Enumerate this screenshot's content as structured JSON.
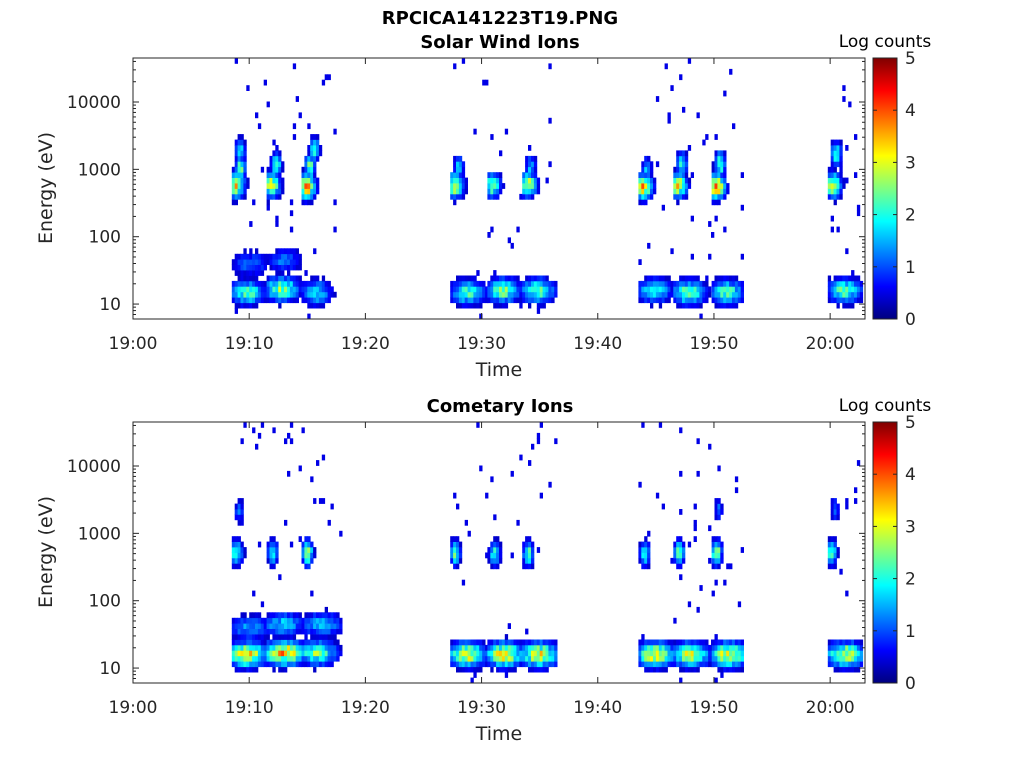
{
  "figure": {
    "title": "RPCICA141223T19.PNG"
  },
  "chart_data": [
    {
      "type": "heatmap",
      "title": "Solar Wind Ions",
      "xlabel": "Time",
      "ylabel": "Energy (eV)",
      "x_ticks": [
        "19:00",
        "19:10",
        "19:20",
        "19:30",
        "19:40",
        "19:50",
        "20:00"
      ],
      "x_range_minutes_after_19_00": [
        0,
        63
      ],
      "y_scale": "log",
      "y_ticks": [
        10,
        100,
        1000,
        10000
      ],
      "y_tick_labels": [
        "10",
        "100",
        "1000",
        "10000"
      ],
      "y_range": [
        6,
        45000
      ],
      "colorbar": {
        "label": "Log counts",
        "range": [
          0,
          5
        ],
        "ticks": [
          "0",
          "1",
          "2",
          "3",
          "4",
          "5"
        ],
        "colormap": "jet"
      },
      "sweeps": [
        {
          "start": 8.5,
          "end": 11.5,
          "components": [
            {
              "energy": 580,
              "t_offset": 0.25,
              "width": 0.5,
              "peak": 3.0
            },
            {
              "energy": 1050,
              "t_offset": 0.6,
              "width": 0.3,
              "peak": 2.4
            },
            {
              "energy": 1900,
              "t_offset": 0.6,
              "width": 0.3,
              "peak": 1.8
            },
            {
              "energy": 15,
              "t_offset": 1.2,
              "width": 1.0,
              "peak": 2.2
            },
            {
              "energy": 40,
              "t_offset": 1.5,
              "width": 1.2,
              "peak": 1.1
            }
          ]
        },
        {
          "start": 11.5,
          "end": 14.5,
          "components": [
            {
              "energy": 580,
              "t_offset": 0.3,
              "width": 0.5,
              "peak": 2.9
            },
            {
              "energy": 1200,
              "t_offset": 0.7,
              "width": 0.3,
              "peak": 2.2
            },
            {
              "energy": 17,
              "t_offset": 1.2,
              "width": 1.0,
              "peak": 2.5
            },
            {
              "energy": 45,
              "t_offset": 1.4,
              "width": 1.0,
              "peak": 1.2
            }
          ]
        },
        {
          "start": 14.5,
          "end": 17.5,
          "components": [
            {
              "energy": 560,
              "t_offset": 0.3,
              "width": 0.5,
              "peak": 3.6
            },
            {
              "energy": 1100,
              "t_offset": 0.6,
              "width": 0.3,
              "peak": 2.4
            },
            {
              "energy": 2000,
              "t_offset": 1.0,
              "width": 0.3,
              "peak": 1.9
            },
            {
              "energy": 15,
              "t_offset": 1.1,
              "width": 0.9,
              "peak": 1.8
            }
          ]
        },
        {
          "start": 27.3,
          "end": 30.5,
          "components": [
            {
              "energy": 580,
              "t_offset": 0.3,
              "width": 0.5,
              "peak": 3.0
            },
            {
              "energy": 1100,
              "t_offset": 0.6,
              "width": 0.3,
              "peak": 1.5
            },
            {
              "energy": 15,
              "t_offset": 1.4,
              "width": 1.0,
              "peak": 2.1
            }
          ]
        },
        {
          "start": 30.5,
          "end": 33.5,
          "components": [
            {
              "energy": 580,
              "t_offset": 0.3,
              "width": 0.5,
              "peak": 2.4
            },
            {
              "energy": 16,
              "t_offset": 1.2,
              "width": 1.0,
              "peak": 2.4
            }
          ]
        },
        {
          "start": 33.5,
          "end": 36.5,
          "components": [
            {
              "energy": 600,
              "t_offset": 0.4,
              "width": 0.5,
              "peak": 2.7
            },
            {
              "energy": 1100,
              "t_offset": 0.6,
              "width": 0.3,
              "peak": 1.5
            },
            {
              "energy": 16,
              "t_offset": 1.2,
              "width": 1.0,
              "peak": 2.3
            }
          ]
        },
        {
          "start": 43.5,
          "end": 46.5,
          "components": [
            {
              "energy": 560,
              "t_offset": 0.3,
              "width": 0.5,
              "peak": 3.4
            },
            {
              "energy": 1000,
              "t_offset": 0.6,
              "width": 0.3,
              "peak": 1.6
            },
            {
              "energy": 16,
              "t_offset": 1.2,
              "width": 1.0,
              "peak": 2.0
            }
          ]
        },
        {
          "start": 46.5,
          "end": 49.8,
          "components": [
            {
              "energy": 580,
              "t_offset": 0.3,
              "width": 0.5,
              "peak": 3.0
            },
            {
              "energy": 1200,
              "t_offset": 0.6,
              "width": 0.3,
              "peak": 2.0
            },
            {
              "energy": 15,
              "t_offset": 1.2,
              "width": 1.0,
              "peak": 2.3
            }
          ]
        },
        {
          "start": 49.8,
          "end": 52.5,
          "components": [
            {
              "energy": 560,
              "t_offset": 0.3,
              "width": 0.5,
              "peak": 3.5
            },
            {
              "energy": 1200,
              "t_offset": 0.6,
              "width": 0.3,
              "peak": 2.4
            },
            {
              "energy": 15,
              "t_offset": 1.2,
              "width": 1.0,
              "peak": 2.2
            }
          ]
        },
        {
          "start": 59.8,
          "end": 62.8,
          "components": [
            {
              "energy": 580,
              "t_offset": 0.3,
              "width": 0.5,
              "peak": 3.0
            },
            {
              "energy": 1700,
              "t_offset": 0.6,
              "width": 0.3,
              "peak": 2.3
            },
            {
              "energy": 16,
              "t_offset": 1.3,
              "width": 1.0,
              "peak": 2.2
            }
          ]
        }
      ]
    },
    {
      "type": "heatmap",
      "title": "Cometary Ions",
      "xlabel": "Time",
      "ylabel": "Energy (eV)",
      "x_ticks": [
        "19:00",
        "19:10",
        "19:20",
        "19:30",
        "19:40",
        "19:50",
        "20:00"
      ],
      "x_range_minutes_after_19_00": [
        0,
        63
      ],
      "y_scale": "log",
      "y_ticks": [
        10,
        100,
        1000,
        10000
      ],
      "y_tick_labels": [
        "10",
        "100",
        "1000",
        "10000"
      ],
      "y_range": [
        6,
        45000
      ],
      "colorbar": {
        "label": "Log counts",
        "range": [
          0,
          5
        ],
        "ticks": [
          "0",
          "1",
          "2",
          "3",
          "4",
          "5"
        ],
        "colormap": "jet"
      },
      "sweeps": [
        {
          "start": 8.5,
          "end": 11.5,
          "components": [
            {
              "energy": 520,
              "t_offset": 0.25,
              "width": 0.4,
              "peak": 2.2
            },
            {
              "energy": 2200,
              "t_offset": 0.5,
              "width": 0.25,
              "peak": 1.2
            },
            {
              "energy": 16,
              "t_offset": 1.2,
              "width": 1.1,
              "peak": 3.2
            },
            {
              "energy": 40,
              "t_offset": 1.4,
              "width": 1.2,
              "peak": 1.4
            }
          ]
        },
        {
          "start": 11.5,
          "end": 14.5,
          "components": [
            {
              "energy": 520,
              "t_offset": 0.4,
              "width": 0.3,
              "peak": 2.0
            },
            {
              "energy": 17,
              "t_offset": 1.4,
              "width": 1.3,
              "peak": 3.3
            },
            {
              "energy": 45,
              "t_offset": 1.3,
              "width": 1.3,
              "peak": 1.6
            }
          ]
        },
        {
          "start": 14.5,
          "end": 17.8,
          "components": [
            {
              "energy": 520,
              "t_offset": 0.4,
              "width": 0.3,
              "peak": 3.0
            },
            {
              "energy": 17,
              "t_offset": 1.2,
              "width": 1.2,
              "peak": 2.4
            },
            {
              "energy": 45,
              "t_offset": 1.6,
              "width": 1.3,
              "peak": 1.5
            }
          ]
        },
        {
          "start": 27.3,
          "end": 30.5,
          "components": [
            {
              "energy": 520,
              "t_offset": 0.3,
              "width": 0.3,
              "peak": 2.4
            },
            {
              "energy": 16,
              "t_offset": 1.3,
              "width": 1.1,
              "peak": 3.0
            }
          ]
        },
        {
          "start": 30.5,
          "end": 33.5,
          "components": [
            {
              "energy": 500,
              "t_offset": 0.5,
              "width": 0.3,
              "peak": 2.2
            },
            {
              "energy": 16,
              "t_offset": 1.3,
              "width": 1.1,
              "peak": 3.1
            }
          ]
        },
        {
          "start": 33.5,
          "end": 36.5,
          "components": [
            {
              "energy": 500,
              "t_offset": 0.4,
              "width": 0.3,
              "peak": 2.3
            },
            {
              "energy": 16,
              "t_offset": 1.3,
              "width": 1.1,
              "peak": 3.0
            }
          ]
        },
        {
          "start": 43.5,
          "end": 46.5,
          "components": [
            {
              "energy": 500,
              "t_offset": 0.4,
              "width": 0.3,
              "peak": 2.0
            },
            {
              "energy": 16,
              "t_offset": 1.3,
              "width": 1.1,
              "peak": 3.1
            }
          ]
        },
        {
          "start": 46.5,
          "end": 49.8,
          "components": [
            {
              "energy": 520,
              "t_offset": 0.4,
              "width": 0.3,
              "peak": 2.5
            },
            {
              "energy": 16,
              "t_offset": 1.3,
              "width": 1.1,
              "peak": 2.9
            }
          ]
        },
        {
          "start": 49.8,
          "end": 52.5,
          "components": [
            {
              "energy": 520,
              "t_offset": 0.3,
              "width": 0.3,
              "peak": 2.7
            },
            {
              "energy": 2300,
              "t_offset": 0.5,
              "width": 0.25,
              "peak": 1.1
            },
            {
              "energy": 16,
              "t_offset": 1.3,
              "width": 1.1,
              "peak": 3.1
            }
          ]
        },
        {
          "start": 59.8,
          "end": 62.8,
          "components": [
            {
              "energy": 520,
              "t_offset": 0.2,
              "width": 0.3,
              "peak": 2.4
            },
            {
              "energy": 2300,
              "t_offset": 0.5,
              "width": 0.25,
              "peak": 1.1
            },
            {
              "energy": 16,
              "t_offset": 1.4,
              "width": 1.1,
              "peak": 2.9
            }
          ]
        }
      ]
    }
  ]
}
